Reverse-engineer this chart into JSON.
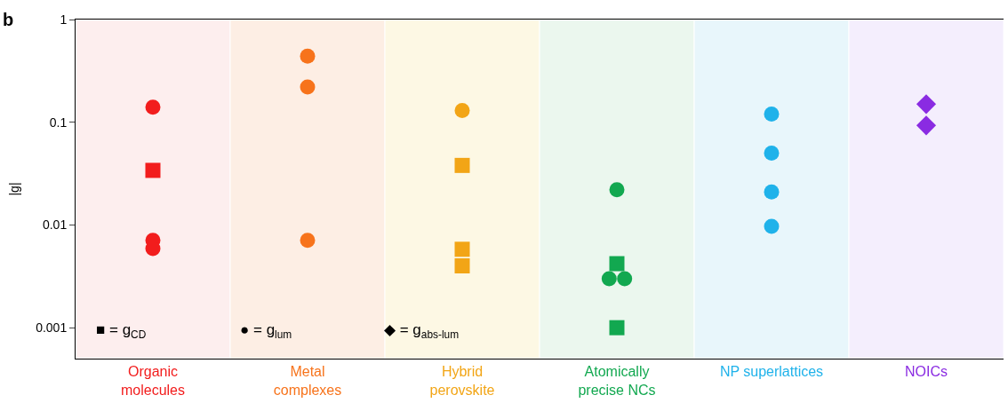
{
  "chart_data": {
    "type": "scatter",
    "title": "b",
    "ylabel": "|g|",
    "log": "y",
    "grid": false,
    "categories": [
      "Organic\nmolecules",
      "Metal\ncomplexes",
      "Hybrid\nperovskite",
      "Atomically\nprecise NCs",
      "NP superlattices",
      "NOICs"
    ],
    "ylim": [
      0.0005,
      1
    ],
    "yticks": [
      0.001,
      0.01,
      0.1,
      1
    ],
    "series": [
      {
        "marker": "square",
        "x": [
          "Organic\nmolecules",
          "Hybrid\nperovskite",
          "Hybrid\nperovskite",
          "Hybrid\nperovskite",
          "Atomically\nprecise NCs",
          "Atomically\nprecise NCs"
        ],
        "values": [
          0.034,
          0.038,
          0.0058,
          0.004,
          0.0042,
          0.001
        ],
        "colors": [
          "#f21d1d",
          "#f2a516",
          "#f2a516",
          "#f2a516",
          "#12a850",
          "#12a850"
        ]
      },
      {
        "marker": "circle",
        "x": [
          "Organic\nmolecules",
          "Organic\nmolecules",
          "Organic\nmolecules",
          "Metal\ncomplexes",
          "Metal\ncomplexes",
          "Metal\ncomplexes",
          "Hybrid\nperovskite",
          "Atomically\nprecise NCs",
          "Atomically\nprecise NCs",
          "Atomically\nprecise NCs",
          "NP superlattices",
          "NP superlattices",
          "NP superlattices",
          "NP superlattices"
        ],
        "values": [
          0.14,
          0.0071,
          0.0059,
          0.44,
          0.22,
          0.0071,
          0.13,
          0.022,
          0.003,
          0.003,
          0.12,
          0.05,
          0.021,
          0.0097
        ],
        "colors": [
          "#f21d1d",
          "#f21d1d",
          "#f21d1d",
          "#f7731b",
          "#f7731b",
          "#f7731b",
          "#f2a516",
          "#12a850",
          "#12a850",
          "#12a850",
          "#1fb2ea",
          "#1fb2ea",
          "#1fb2ea",
          "#1fb2ea"
        ]
      },
      {
        "marker": "diamond",
        "x": [
          "NOICs",
          "NOICs"
        ],
        "values": [
          0.15,
          0.093
        ],
        "colors": [
          "#8a2be2",
          "#8a2be2"
        ]
      }
    ],
    "bands": [
      {
        "axis": "x",
        "from": "Organic\nmolecules",
        "to": "Organic\nmolecules",
        "color": "#fdeeee"
      },
      {
        "axis": "x",
        "from": "Metal\ncomplexes",
        "to": "Metal\ncomplexes",
        "color": "#fdeee4"
      },
      {
        "axis": "x",
        "from": "Hybrid\nperovskite",
        "to": "Hybrid\nperovskite",
        "color": "#fdf8e4"
      },
      {
        "axis": "x",
        "from": "Atomically\nprecise NCs",
        "to": "Atomically\nprecise NCs",
        "color": "#ebf7ee"
      },
      {
        "axis": "x",
        "from": "NP superlattices",
        "to": "NP superlattices",
        "color": "#e8f6fb"
      },
      {
        "axis": "x",
        "from": "NOICs",
        "to": "NOICs",
        "color": "#f4eefd"
      }
    ],
    "annotations": [
      "■ = g$_{CD}$",
      "● = g$_{lum}$",
      "◆ = g$_{abs-lum}$"
    ]
  }
}
